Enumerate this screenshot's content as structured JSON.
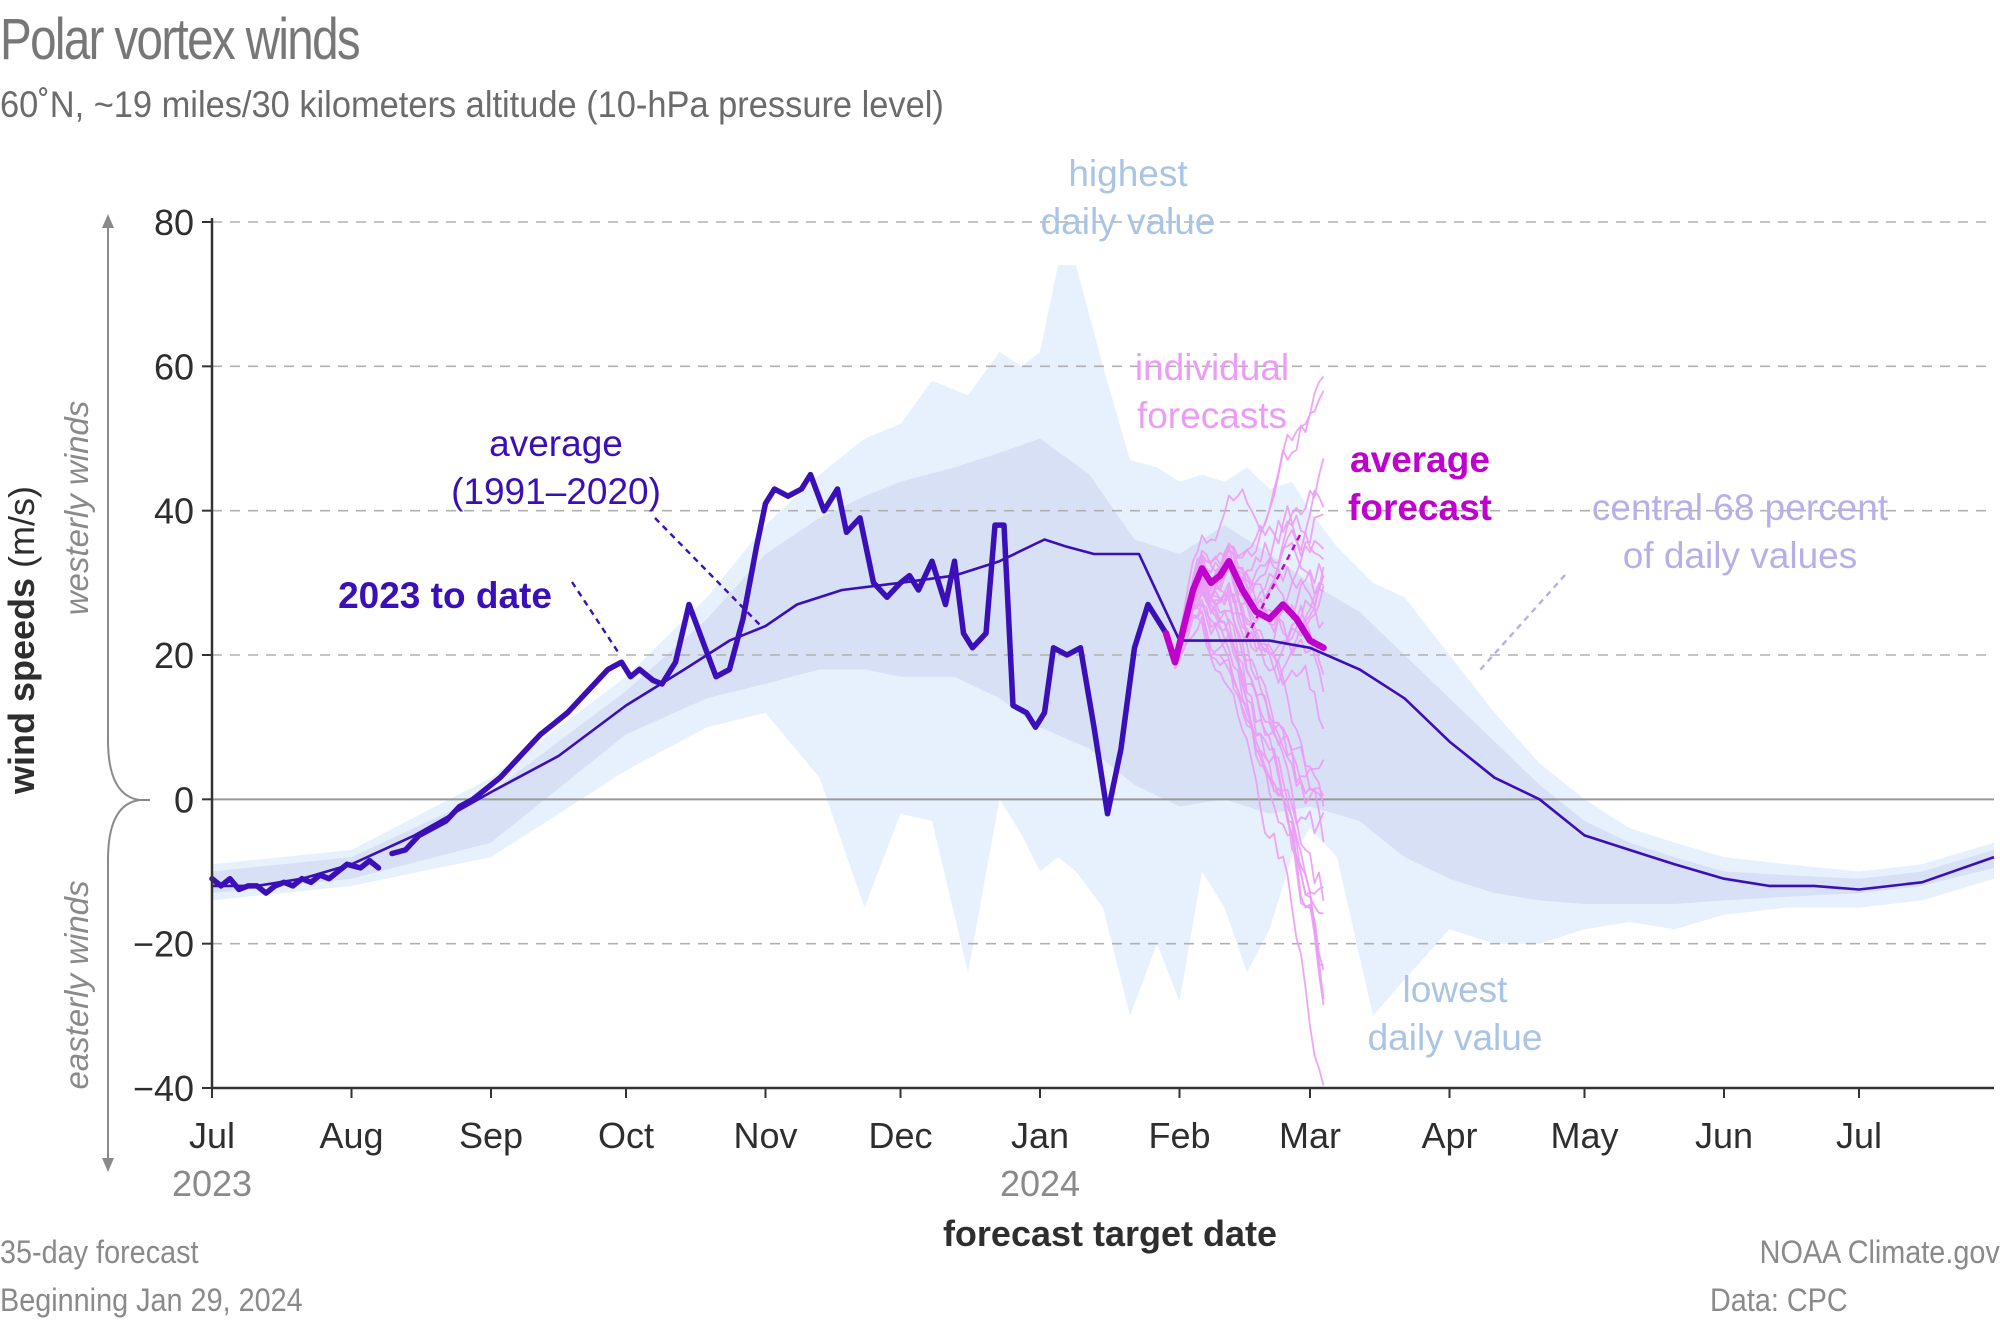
{
  "title": "Polar vortex winds",
  "subtitle": "60˚N, ~19 miles/30 kilometers altitude (10-hPa pressure level)",
  "footer": {
    "left_line1": "35-day forecast",
    "left_line2": "Beginning Jan 29, 2024",
    "right_line1": "NOAA Climate.gov",
    "right_line2": "Data: CPC"
  },
  "colors": {
    "observed": "#3a0fb7",
    "climatology": "#3a0fb7",
    "average_forecast": "#c000cc",
    "individual_forecasts": "#eb9cf5",
    "range_band": "#e6f1fd",
    "central_band": "#d8e0f5",
    "label_range": "#a9c4e4",
    "label_central": "#b9aee8"
  },
  "chart_data": {
    "type": "line",
    "title": "Polar vortex winds",
    "subtitle": "60˚N, ~19 miles/30 kilometers altitude (10-hPa pressure level)",
    "xlabel": "forecast target date",
    "ylabel": "wind speeds (m/s)",
    "ylabel_upper": "westerly winds",
    "ylabel_lower": "easterly winds",
    "ylim": [
      -40,
      80
    ],
    "yticks": [
      80,
      60,
      40,
      20,
      0,
      -20,
      -40
    ],
    "ytick_labels": [
      "80",
      "60",
      "40",
      "20",
      "0",
      "−20",
      "−40"
    ],
    "x_unit": "days since Jul 1, 2023",
    "xlim": [
      0,
      396
    ],
    "xticks": [
      0,
      31,
      62,
      92,
      123,
      153,
      184,
      215,
      244,
      275,
      305,
      336,
      366
    ],
    "xtick_labels": [
      "Jul",
      "Aug",
      "Sep",
      "Oct",
      "Nov",
      "Dec",
      "Jan",
      "Feb",
      "Mar",
      "Apr",
      "May",
      "Jun",
      "Jul"
    ],
    "year_labels": [
      {
        "x": 0,
        "label": "2023"
      },
      {
        "x": 184,
        "label": "2024"
      }
    ],
    "grid": "horizontal dashed",
    "series": [
      {
        "name": "2023 to date",
        "style": "thick",
        "segments": [
          {
            "x": [
              0,
              2,
              4,
              6,
              8,
              10,
              12,
              14,
              16,
              18,
              20,
              22,
              24,
              26,
              28,
              30,
              33,
              35,
              37
            ],
            "y": [
              -11,
              -12,
              -11,
              -12.5,
              -12,
              -12,
              -13,
              -12,
              -11.5,
              -12,
              -11,
              -11.5,
              -10.5,
              -11,
              -10,
              -9,
              -9.5,
              -8.5,
              -9.5
            ]
          },
          {
            "x": [
              40,
              43,
              46,
              49,
              52,
              55,
              58,
              61,
              64,
              67,
              70,
              73,
              76,
              79,
              82,
              85,
              88,
              91,
              93,
              95,
              98,
              100,
              103,
              106,
              109,
              112,
              115,
              118,
              121,
              123,
              125,
              128,
              131,
              133,
              136,
              139,
              141,
              144,
              147,
              150,
              153,
              155,
              157,
              160,
              163,
              165,
              167,
              169,
              172,
              174,
              176,
              178,
              181,
              183,
              185,
              187,
              190,
              193,
              196,
              199,
              202,
              205,
              208,
              209,
              211,
              212
            ],
            "y": [
              -7.5,
              -7,
              -5,
              -4,
              -3,
              -1,
              0,
              1.5,
              3,
              5,
              7,
              9,
              10.5,
              12,
              14,
              16,
              18,
              19,
              17,
              18,
              16.5,
              16,
              19,
              27,
              22,
              17,
              18,
              25,
              35,
              41,
              43,
              42,
              43,
              45,
              40,
              43,
              37,
              39,
              30,
              28,
              30,
              31,
              29,
              33,
              27,
              33,
              23,
              21,
              23,
              38,
              38,
              13,
              12,
              10,
              12,
              21,
              20,
              21,
              10,
              -2,
              7,
              21,
              27,
              26,
              24,
              23
            ]
          }
        ]
      },
      {
        "name": "average forecast",
        "style": "thick",
        "x": [
          212,
          214,
          216,
          218,
          220,
          222,
          224,
          226,
          229,
          232,
          235,
          238,
          241,
          244,
          247
        ],
        "y": [
          23,
          19,
          24,
          29,
          32,
          30,
          31,
          33,
          29,
          26,
          25,
          27,
          25,
          22,
          21
        ]
      },
      {
        "name": "average (1991–2020)",
        "style": "thin",
        "x": [
          0,
          10,
          20,
          31,
          45,
          62,
          77,
          92,
          105,
          115,
          123,
          130,
          140,
          153,
          165,
          175,
          185,
          190,
          196,
          206,
          215,
          225,
          235,
          244,
          255,
          265,
          275,
          285,
          295,
          305,
          315,
          325,
          336,
          346,
          356,
          366,
          380,
          396
        ],
        "y": [
          -12,
          -12,
          -11,
          -9,
          -5,
          1,
          6,
          13,
          18,
          22,
          24,
          27,
          29,
          30,
          31,
          33,
          36,
          35,
          34,
          34,
          22,
          22,
          22,
          21,
          18,
          14,
          8,
          3,
          0,
          -5,
          -7,
          -9,
          -11,
          -12,
          -12,
          -12.5,
          -11.5,
          -8
        ]
      }
    ],
    "bands": [
      {
        "name": "highest/lowest daily value",
        "x": [
          0,
          31,
          62,
          92,
          110,
          123,
          135,
          145,
          153,
          160,
          168,
          175,
          180,
          184,
          188,
          192,
          198,
          204,
          210,
          215,
          220,
          225,
          230,
          235,
          240,
          244,
          250,
          258,
          265,
          275,
          285,
          295,
          305,
          315,
          325,
          336,
          350,
          366,
          380,
          396
        ],
        "upper": [
          -9,
          -7,
          3,
          17,
          28,
          38,
          45,
          50,
          52,
          58,
          56,
          62,
          60,
          62,
          74,
          74,
          60,
          47,
          46,
          44,
          45,
          44,
          46,
          43,
          44,
          40,
          35,
          30,
          28,
          20,
          12,
          5,
          0,
          -4,
          -6,
          -8,
          -9,
          -10,
          -9,
          -6
        ],
        "lower": [
          -14,
          -12,
          -8,
          4,
          10,
          12,
          3,
          -15,
          -2,
          -3,
          -24,
          0,
          -5,
          -10,
          -8,
          -10,
          -15,
          -30,
          -20,
          -28,
          -10,
          -15,
          -24,
          -18,
          -8,
          -4,
          -8,
          -30,
          -25,
          -18,
          -20,
          -20,
          -18,
          -17,
          -18,
          -16,
          -15,
          -15,
          -14,
          -11
        ]
      },
      {
        "name": "central 68 percent of daily values",
        "x": [
          0,
          31,
          62,
          92,
          110,
          123,
          135,
          145,
          153,
          165,
          175,
          184,
          195,
          205,
          215,
          225,
          235,
          244,
          255,
          265,
          275,
          285,
          295,
          305,
          315,
          325,
          336,
          350,
          366,
          380,
          396
        ],
        "upper": [
          -10,
          -8,
          1,
          15,
          25,
          34,
          39,
          42,
          44,
          46,
          48,
          50,
          45,
          36,
          34,
          38,
          34,
          30,
          26,
          20,
          14,
          8,
          2,
          -3,
          -6,
          -8,
          -10,
          -10.5,
          -11,
          -10,
          -7
        ],
        "lower": [
          -13,
          -11,
          -6,
          9,
          14,
          16,
          18,
          18,
          17,
          17,
          14,
          10,
          7,
          2,
          -1,
          0,
          -2,
          -1,
          -3,
          -8,
          -11,
          -13,
          -14,
          -14.5,
          -14.5,
          -14.5,
          -14,
          -13.5,
          -13,
          -12,
          -9.5
        ]
      }
    ],
    "individual_forecasts": {
      "name": "individual forecasts",
      "start_x": 212,
      "end_x": 247,
      "count": 31,
      "spread_range_at_end": [
        -22,
        51
      ]
    },
    "annotations": [
      {
        "text": [
          "highest",
          "daily value"
        ],
        "color_key": "label_range"
      },
      {
        "text": [
          "individual",
          "forecasts"
        ],
        "color_key": "individual_forecasts"
      },
      {
        "text": [
          "average",
          "forecast"
        ],
        "color_key": "average_forecast",
        "bold": true
      },
      {
        "text": [
          "central 68 percent",
          "of daily values"
        ],
        "color_key": "label_central"
      },
      {
        "text": [
          "average",
          "(1991–2020)"
        ],
        "color_key": "climatology"
      },
      {
        "text": [
          "2023 to date"
        ],
        "color_key": "observed",
        "bold": true
      },
      {
        "text": [
          "lowest",
          "daily value"
        ],
        "color_key": "label_range"
      }
    ]
  }
}
